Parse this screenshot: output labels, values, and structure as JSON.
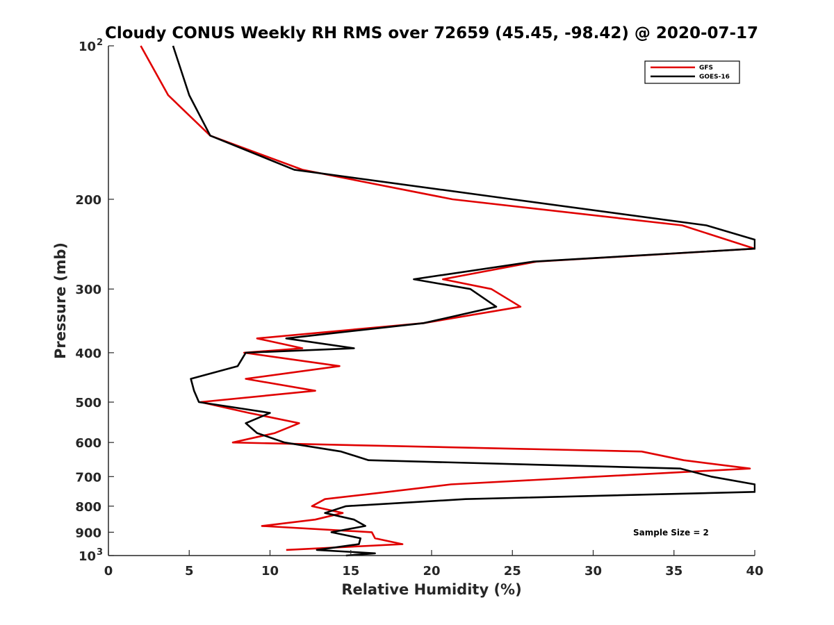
{
  "chart_data": {
    "type": "line",
    "title": "Cloudy CONUS Weekly RH RMS over 72659 (45.45, -98.42) @ 2020-07-17",
    "xlabel": "Relative Humidity (%)",
    "ylabel": "Pressure (mb)",
    "xlim": [
      0,
      40
    ],
    "ylim": [
      100,
      1000
    ],
    "y_scale": "log",
    "y_reversed": true,
    "grid": false,
    "legend_position": "top-right",
    "x_ticks": [
      "0",
      "5",
      "10",
      "15",
      "20",
      "25",
      "30",
      "35",
      "40"
    ],
    "y_ticks": [
      {
        "value": 100,
        "label": "10",
        "sup": "2"
      },
      {
        "value": 200,
        "label": "200",
        "sup": ""
      },
      {
        "value": 300,
        "label": "300",
        "sup": ""
      },
      {
        "value": 400,
        "label": "400",
        "sup": ""
      },
      {
        "value": 500,
        "label": "500",
        "sup": ""
      },
      {
        "value": 600,
        "label": "600",
        "sup": ""
      },
      {
        "value": 700,
        "label": "700",
        "sup": ""
      },
      {
        "value": 800,
        "label": "800",
        "sup": ""
      },
      {
        "value": 900,
        "label": "900",
        "sup": ""
      },
      {
        "value": 1000,
        "label": "10",
        "sup": "3"
      }
    ],
    "annotation": "Sample Size = 2",
    "series": [
      {
        "name": "GFS",
        "color": "#e00000",
        "points": [
          [
            2.0,
            100
          ],
          [
            3.7,
            125
          ],
          [
            6.3,
            150
          ],
          [
            12.0,
            175
          ],
          [
            21.3,
            200
          ],
          [
            35.5,
            225
          ],
          [
            40.0,
            250
          ],
          [
            26.5,
            265
          ],
          [
            20.7,
            287
          ],
          [
            23.7,
            300
          ],
          [
            25.5,
            325
          ],
          [
            19.5,
            350
          ],
          [
            9.2,
            375
          ],
          [
            12.0,
            392
          ],
          [
            8.4,
            400
          ],
          [
            14.3,
            425
          ],
          [
            8.5,
            450
          ],
          [
            12.8,
            475
          ],
          [
            5.7,
            500
          ],
          [
            8.7,
            525
          ],
          [
            11.8,
            550
          ],
          [
            10.3,
            575
          ],
          [
            7.7,
            600
          ],
          [
            33.0,
            625
          ],
          [
            35.6,
            650
          ],
          [
            39.7,
            675
          ],
          [
            21.2,
            725
          ],
          [
            17.3,
            750
          ],
          [
            13.4,
            775
          ],
          [
            12.6,
            800
          ],
          [
            14.5,
            825
          ],
          [
            12.8,
            850
          ],
          [
            9.5,
            875
          ],
          [
            16.3,
            900
          ],
          [
            16.5,
            925
          ],
          [
            18.2,
            950
          ],
          [
            11.0,
            975
          ]
        ]
      },
      {
        "name": "GOES-16",
        "color": "#000000",
        "points": [
          [
            4.0,
            100
          ],
          [
            5.0,
            125
          ],
          [
            6.3,
            150
          ],
          [
            11.5,
            175
          ],
          [
            25.0,
            200
          ],
          [
            37.0,
            225
          ],
          [
            40.0,
            240
          ],
          [
            40.0,
            250
          ],
          [
            26.3,
            265
          ],
          [
            18.9,
            287
          ],
          [
            22.4,
            300
          ],
          [
            24.0,
            325
          ],
          [
            19.5,
            350
          ],
          [
            11.0,
            375
          ],
          [
            15.2,
            392
          ],
          [
            8.5,
            400
          ],
          [
            8.0,
            425
          ],
          [
            5.1,
            450
          ],
          [
            5.3,
            475
          ],
          [
            5.6,
            500
          ],
          [
            10.0,
            525
          ],
          [
            8.5,
            550
          ],
          [
            9.2,
            575
          ],
          [
            10.9,
            600
          ],
          [
            14.4,
            625
          ],
          [
            16.1,
            650
          ],
          [
            35.4,
            675
          ],
          [
            37.3,
            700
          ],
          [
            40.0,
            725
          ],
          [
            40.0,
            750
          ],
          [
            22.1,
            775
          ],
          [
            14.7,
            800
          ],
          [
            13.4,
            825
          ],
          [
            15.2,
            850
          ],
          [
            15.9,
            875
          ],
          [
            13.8,
            900
          ],
          [
            15.6,
            925
          ],
          [
            15.5,
            950
          ],
          [
            12.9,
            975
          ],
          [
            16.5,
            990
          ],
          [
            14.7,
            1000
          ]
        ]
      }
    ]
  }
}
